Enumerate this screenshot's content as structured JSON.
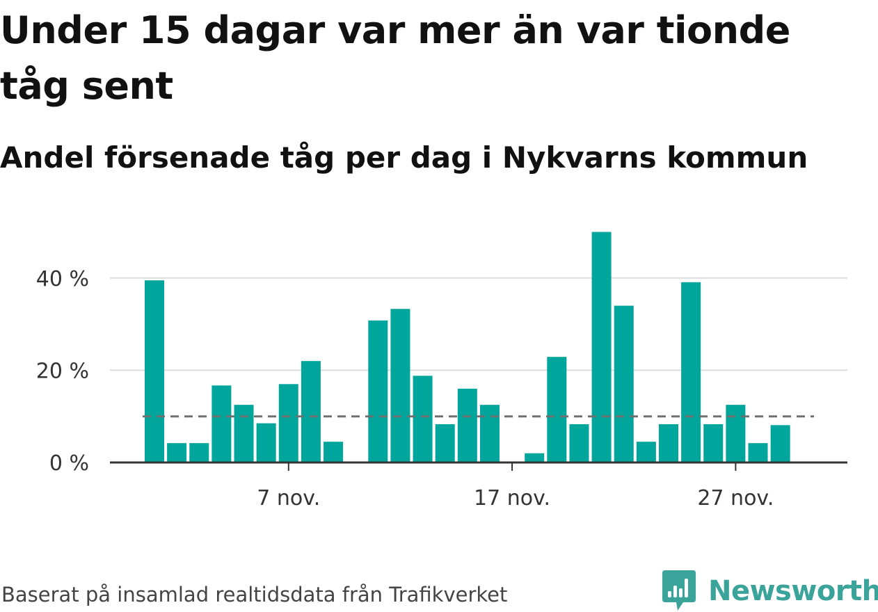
{
  "title": "Under 15 dagar var mer än var tionde tåg sent",
  "subtitle": "Andel försenade tåg per dag i Nykvarns kommun",
  "footer": "Baserat på insamlad realtidsdata från Trafikverket",
  "brand": {
    "name": "Newsworthy",
    "icon": "newsworthy-logo-icon",
    "color": "#3aa39a"
  },
  "colors": {
    "bar": "#00a59b",
    "reference_line": "#707070",
    "gridline": "#dddddd",
    "axis": "#333333",
    "text": "#111111"
  },
  "chart_data": {
    "type": "bar",
    "x": [
      "1 nov.",
      "2 nov.",
      "3 nov.",
      "4 nov.",
      "5 nov.",
      "6 nov.",
      "7 nov.",
      "8 nov.",
      "9 nov.",
      "10 nov.",
      "11 nov.",
      "12 nov.",
      "13 nov.",
      "14 nov.",
      "15 nov.",
      "16 nov.",
      "17 nov.",
      "18 nov.",
      "19 nov.",
      "20 nov.",
      "21 nov.",
      "22 nov.",
      "23 nov.",
      "24 nov.",
      "25 nov.",
      "26 nov.",
      "27 nov.",
      "28 nov.",
      "29 nov.",
      "30 nov."
    ],
    "values": [
      39.5,
      4.2,
      4.2,
      16.7,
      12.5,
      8.5,
      17,
      22,
      4.5,
      null,
      30.8,
      33.3,
      18.8,
      8.3,
      16,
      12.5,
      null,
      2,
      22.9,
      8.3,
      50,
      34,
      4.5,
      8.3,
      39.1,
      8.3,
      12.5,
      4.2,
      8.1,
      null
    ],
    "reference_line": {
      "value": 10,
      "style": "dashed"
    },
    "yticks": [
      0,
      20,
      40
    ],
    "ytick_labels": [
      "0 %",
      "20 %",
      "40 %"
    ],
    "xticks": [
      "7 nov.",
      "17 nov.",
      "27 nov."
    ],
    "ylim": [
      0,
      52
    ],
    "grid": "horizontal",
    "title": "Under 15 dagar var mer än var tionde tåg sent",
    "subtitle": "Andel försenade tåg per dag i Nykvarns kommun",
    "xlabel": "",
    "ylabel": ""
  }
}
